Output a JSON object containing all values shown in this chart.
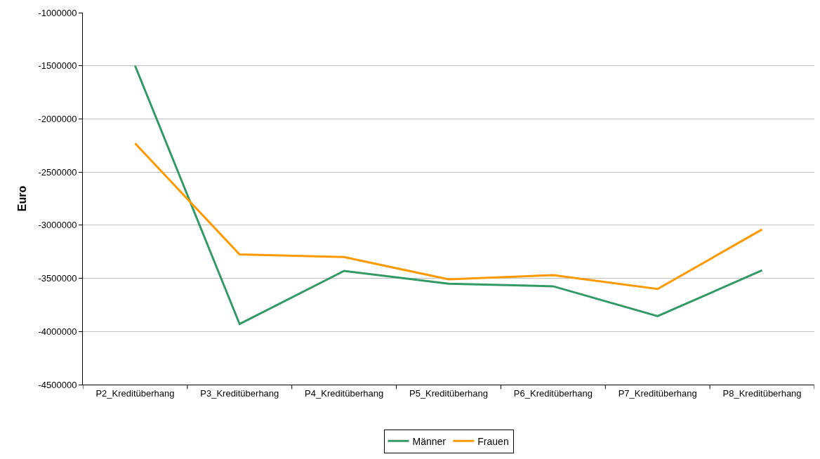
{
  "chart_data": {
    "type": "line",
    "ylabel": "Euro",
    "categories": [
      "P2_Kreditüberhang",
      "P3_Kreditüberhang",
      "P4_Kreditüberhang",
      "P5_Kreditüberhang",
      "P6_Kreditüberhang",
      "P7_Kreditüberhang",
      "P8_Kreditüberhang"
    ],
    "series": [
      {
        "name": "Männer",
        "color": "#339966",
        "values": [
          -1500000,
          -3930000,
          -3430000,
          -3550000,
          -3575000,
          -3855000,
          -3425000
        ]
      },
      {
        "name": "Frauen",
        "color": "#ff9900",
        "values": [
          -2230000,
          -3275000,
          -3300000,
          -3510000,
          -3470000,
          -3600000,
          -3040000
        ]
      }
    ],
    "ylim": [
      -4500000,
      -1000000
    ],
    "yticks": [
      -4500000,
      -4000000,
      -3500000,
      -3000000,
      -2500000,
      -2000000,
      -1500000,
      -1000000
    ],
    "grid": "y",
    "legend": "bottom",
    "marker": "none",
    "line_style": "solid"
  }
}
